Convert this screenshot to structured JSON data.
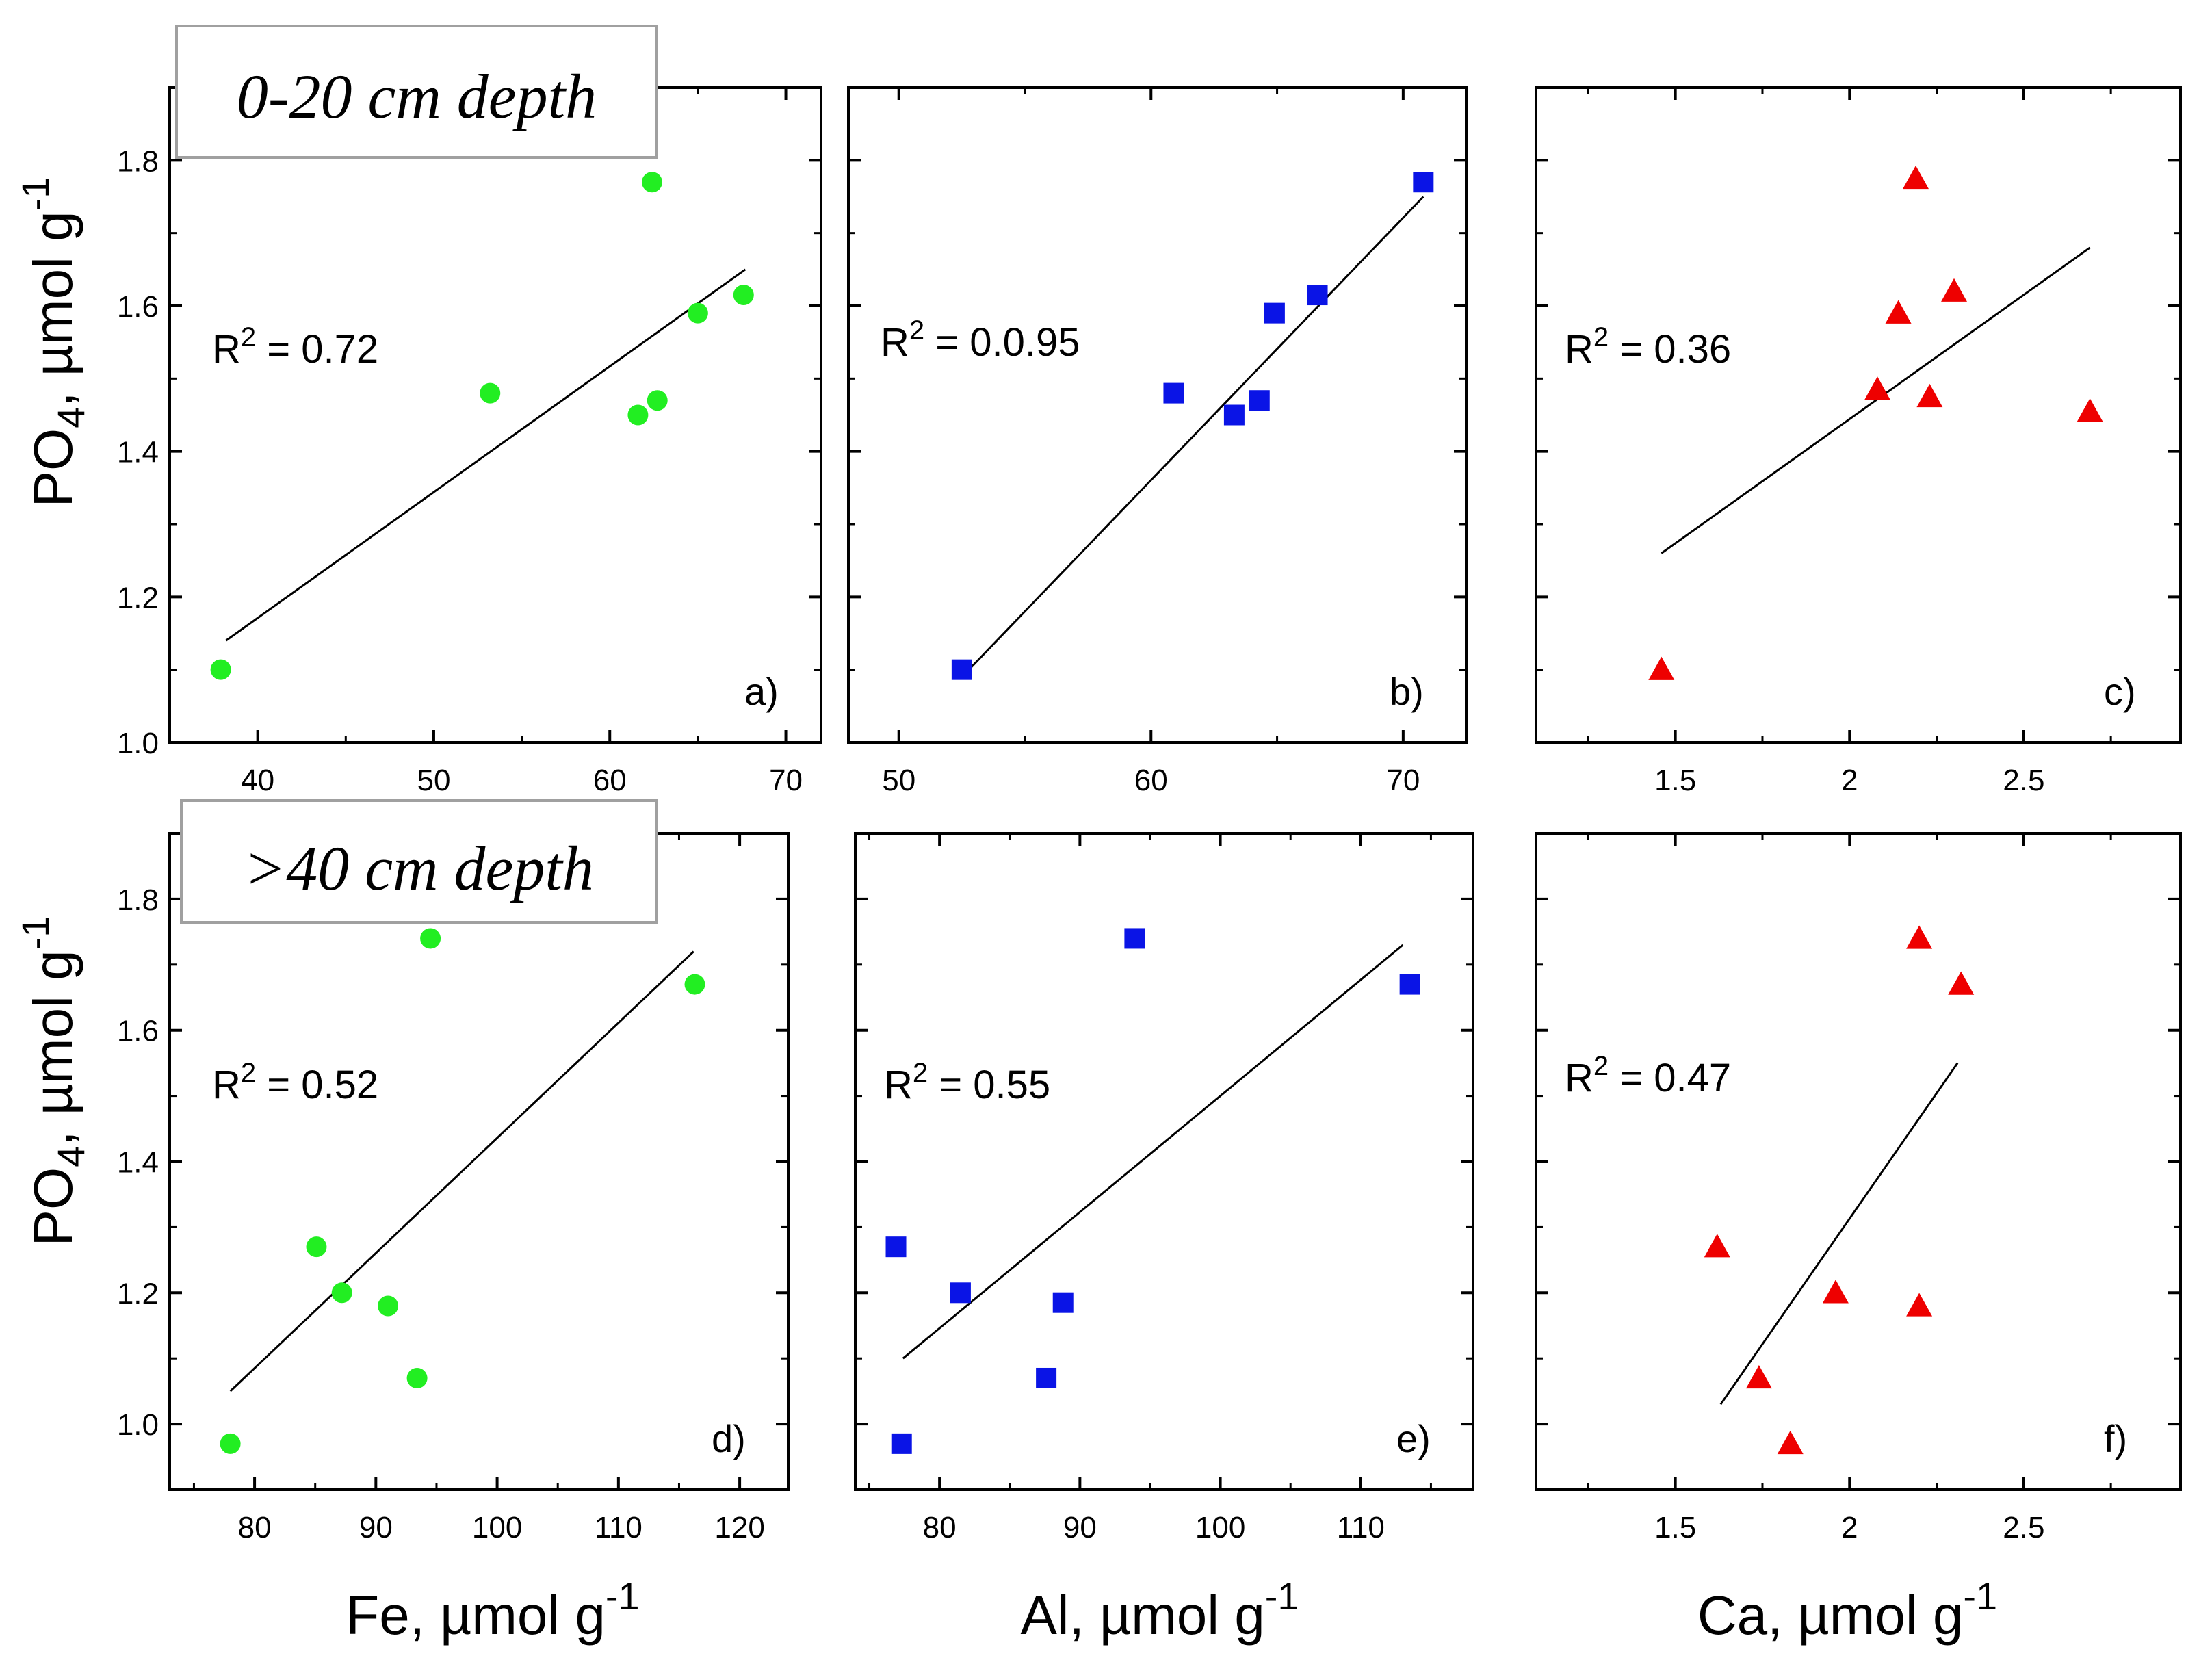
{
  "figure": {
    "y_axis_label": {
      "base": "PO",
      "sub": "4",
      "unit": ", µmol g",
      "sup": "-1"
    },
    "x_axis_labels": [
      {
        "base": "Fe, µmol g",
        "sup": "-1"
      },
      {
        "base": "Al, µmol g",
        "sup": "-1"
      },
      {
        "base": "Ca, µmol g",
        "sup": "-1"
      }
    ],
    "depth_labels": [
      "0-20 cm depth",
      ">40 cm depth"
    ]
  },
  "colors": {
    "green": "#22ee22",
    "blue": "#0a14e6",
    "red": "#ee0000",
    "axis": "#000000"
  },
  "chart_data": [
    {
      "type": "scatter",
      "panel": "a)",
      "r2_text": "= 0.72",
      "marker": "circle",
      "color": "#22ee22",
      "xlim": [
        35,
        72
      ],
      "ylim": [
        1.0,
        1.9
      ],
      "xticks": [
        40,
        50,
        60,
        70
      ],
      "yticks": [
        1.0,
        1.2,
        1.4,
        1.6,
        1.8
      ],
      "x": [
        37.9,
        53.2,
        61.6,
        62.4,
        62.7,
        65.0,
        67.6
      ],
      "y": [
        1.1,
        1.48,
        1.45,
        1.77,
        1.47,
        1.59,
        1.615
      ],
      "fit_line": {
        "x": [
          38.2,
          67.7
        ],
        "y": [
          1.14,
          1.65
        ]
      }
    },
    {
      "type": "scatter",
      "panel": "b)",
      "r2_text": "= 0.0.95",
      "marker": "square",
      "color": "#0a14e6",
      "xlim": [
        48,
        72.5
      ],
      "ylim": [
        1.0,
        1.9
      ],
      "xticks": [
        50,
        60,
        70
      ],
      "yticks": [
        1.0,
        1.2,
        1.4,
        1.6,
        1.8
      ],
      "x": [
        52.5,
        60.9,
        63.3,
        64.3,
        64.9,
        66.6,
        70.8
      ],
      "y": [
        1.1,
        1.48,
        1.45,
        1.47,
        1.59,
        1.615,
        1.77
      ],
      "fit_line": {
        "x": [
          52.5,
          70.8
        ],
        "y": [
          1.09,
          1.75
        ]
      }
    },
    {
      "type": "scatter",
      "panel": "c)",
      "r2_text": "= 0.36",
      "marker": "triangle",
      "color": "#ee0000",
      "xlim": [
        1.1,
        2.95
      ],
      "ylim": [
        1.0,
        1.9
      ],
      "xticks": [
        1.5,
        2.0,
        2.5
      ],
      "yticks": [
        1.0,
        1.2,
        1.4,
        1.6,
        1.8
      ],
      "x": [
        1.46,
        2.08,
        2.14,
        2.19,
        2.23,
        2.3,
        2.69
      ],
      "y": [
        1.1,
        1.485,
        1.59,
        1.775,
        1.475,
        1.62,
        1.455
      ],
      "fit_line": {
        "x": [
          1.46,
          2.69
        ],
        "y": [
          1.26,
          1.68
        ]
      }
    },
    {
      "type": "scatter",
      "panel": "d)",
      "r2_text": "= 0.52",
      "marker": "circle",
      "color": "#22ee22",
      "xlim": [
        73,
        124
      ],
      "ylim": [
        0.9,
        1.9
      ],
      "xticks": [
        80,
        90,
        100,
        110,
        120
      ],
      "yticks": [
        1.0,
        1.2,
        1.4,
        1.6,
        1.8
      ],
      "x": [
        78.0,
        85.1,
        87.2,
        91.0,
        93.4,
        94.5,
        116.3
      ],
      "y": [
        0.97,
        1.27,
        1.2,
        1.18,
        1.07,
        1.74,
        1.67
      ],
      "fit_line": {
        "x": [
          78.0,
          116.2
        ],
        "y": [
          1.05,
          1.72
        ]
      }
    },
    {
      "type": "scatter",
      "panel": "e)",
      "r2_text": "= 0.55",
      "marker": "square",
      "color": "#0a14e6",
      "xlim": [
        74,
        118
      ],
      "ylim": [
        0.9,
        1.9
      ],
      "xticks": [
        80,
        90,
        100,
        110
      ],
      "yticks": [
        1.0,
        1.2,
        1.4,
        1.6,
        1.8
      ],
      "x": [
        76.9,
        77.3,
        81.5,
        87.6,
        88.8,
        93.9,
        113.5
      ],
      "y": [
        1.27,
        0.97,
        1.2,
        1.07,
        1.185,
        1.74,
        1.67
      ],
      "fit_line": {
        "x": [
          77.4,
          113.0
        ],
        "y": [
          1.1,
          1.73
        ]
      }
    },
    {
      "type": "scatter",
      "panel": "f)",
      "r2_text": "= 0.47",
      "marker": "triangle",
      "color": "#ee0000",
      "xlim": [
        1.1,
        2.95
      ],
      "ylim": [
        0.9,
        1.9
      ],
      "xticks": [
        1.5,
        2.0,
        2.5
      ],
      "yticks": [
        1.0,
        1.2,
        1.4,
        1.6,
        1.8
      ],
      "x": [
        1.62,
        1.74,
        1.83,
        1.96,
        2.2,
        2.2,
        2.32
      ],
      "y": [
        1.27,
        1.07,
        0.97,
        1.2,
        1.74,
        1.18,
        1.67
      ],
      "fit_line": {
        "x": [
          1.63,
          2.31
        ],
        "y": [
          1.03,
          1.55
        ]
      }
    }
  ]
}
